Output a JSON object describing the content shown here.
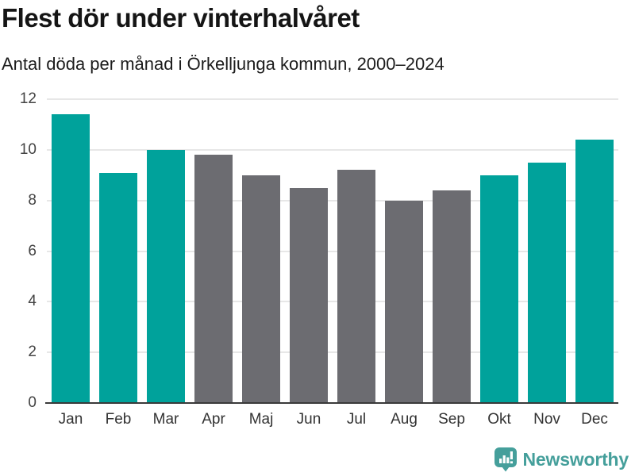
{
  "chart_data": {
    "type": "bar",
    "title": "Flest dör under vinterhalvåret",
    "subtitle": "Antal döda per månad i Örkelljunga kommun, 2000–2024",
    "categories": [
      "Jan",
      "Feb",
      "Mar",
      "Apr",
      "Maj",
      "Jun",
      "Jul",
      "Aug",
      "Sep",
      "Okt",
      "Nov",
      "Dec"
    ],
    "values": [
      11.4,
      9.1,
      10.0,
      9.8,
      9.0,
      8.5,
      9.2,
      8.0,
      8.4,
      9.0,
      9.5,
      10.4
    ],
    "bar_colors": [
      "highlight",
      "highlight",
      "highlight",
      "base",
      "base",
      "base",
      "base",
      "base",
      "base",
      "highlight",
      "highlight",
      "highlight"
    ],
    "colors": {
      "highlight": "#00a29b",
      "base": "#6c6c71",
      "grid": "#e7e7e7",
      "axis": "#3a3a3a"
    },
    "xlabel": "",
    "ylabel": "",
    "yticks": [
      0,
      2,
      4,
      6,
      8,
      10,
      12
    ],
    "ylim": [
      0,
      12
    ],
    "grid": true,
    "legend": "none"
  },
  "footer": {
    "brand": "Newsworthy",
    "brand_color": "#459f9b"
  }
}
